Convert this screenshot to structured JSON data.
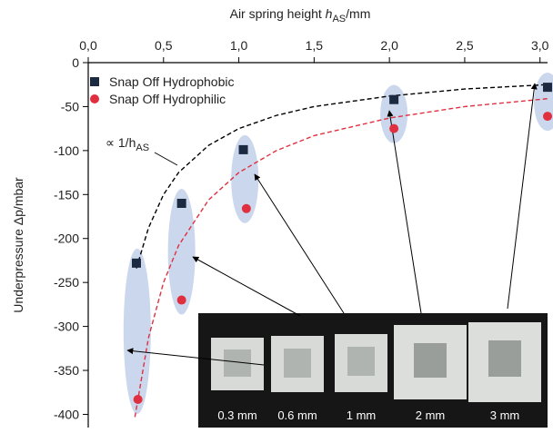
{
  "chart_data": {
    "type": "scatter",
    "x_label": {
      "text": "Air spring height ",
      "var": "h",
      "sub": "AS",
      "unit": "/mm"
    },
    "y_label": "Underpressure Δp/mbar",
    "annotation": {
      "text": "∝ 1/h",
      "sub": "AS"
    },
    "xlim": [
      0,
      3.05
    ],
    "ylim": [
      -415,
      0
    ],
    "xticks": [
      {
        "value": 0,
        "label": "0,0"
      },
      {
        "value": 0.5,
        "label": "0,5"
      },
      {
        "value": 1,
        "label": "1,0"
      },
      {
        "value": 1.5,
        "label": "1,5"
      },
      {
        "value": 2,
        "label": "2,0"
      },
      {
        "value": 2.5,
        "label": "2,5"
      },
      {
        "value": 3,
        "label": "3,0"
      }
    ],
    "yticks": [
      0,
      -50,
      -100,
      -150,
      -200,
      -250,
      -300,
      -350,
      -400
    ],
    "legend": "top-left",
    "series": [
      {
        "name": "Snap Off Hydrophobic",
        "color": "#1b2a41",
        "marker": "square",
        "x": [
          0.32,
          0.62,
          1.03,
          2.03,
          3.05
        ],
        "values": [
          -228,
          -160,
          -99,
          -42,
          -28
        ]
      },
      {
        "name": "Snap Off Hydrophilic",
        "color": "#e03040",
        "marker": "circle",
        "x": [
          0.33,
          0.62,
          1.05,
          2.03,
          3.05
        ],
        "values": [
          -383,
          -270,
          -166,
          -75,
          -61
        ]
      }
    ],
    "fits": [
      {
        "color": "#000000",
        "x": [
          0.32,
          0.4,
          0.5,
          0.6,
          0.8,
          1.0,
          1.25,
          1.5,
          2.0,
          2.5,
          3.05
        ],
        "values": [
          -234,
          -188,
          -150,
          -125,
          -94,
          -75,
          -60,
          -50,
          -38,
          -30,
          -25
        ]
      },
      {
        "color": "#e03040",
        "x": [
          0.31,
          0.4,
          0.5,
          0.6,
          0.8,
          1.0,
          1.25,
          1.5,
          2.0,
          2.5,
          3.05
        ],
        "values": [
          -403,
          -313,
          -250,
          -208,
          -156,
          -125,
          -100,
          -83,
          -63,
          -50,
          -41
        ]
      }
    ],
    "inset_labels": [
      "0.3 mm",
      "0.6 mm",
      "1 mm",
      "2 mm",
      "3 mm"
    ]
  }
}
